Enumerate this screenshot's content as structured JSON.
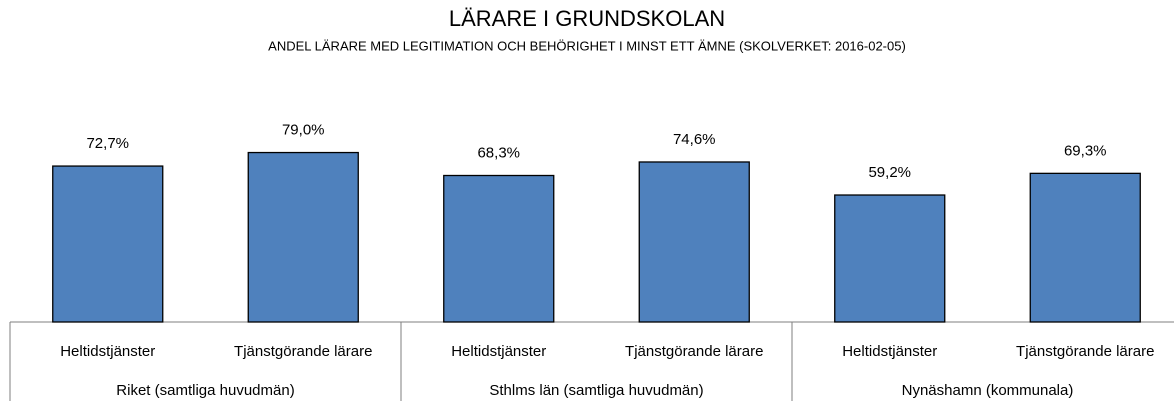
{
  "chart_data": {
    "type": "bar",
    "title": "LÄRARE I GRUNDSKOLAN",
    "subtitle": "ANDEL LÄRARE MED LEGITIMATION OCH BEHÖRIGHET I MINST ETT ÄMNE (SKOLVERKET: 2016-02-05)",
    "categories": [
      "Heltidstjänster",
      "Tjänstgörande lärare",
      "Heltidstjänster",
      "Tjänstgörande lärare",
      "Heltidstjänster",
      "Tjänstgörande lärare"
    ],
    "groups": [
      "Riket (samtliga huvudmän)",
      "Sthlms län (samtliga huvudmän)",
      "Nynäshamn (kommunala)"
    ],
    "values": [
      72.7,
      79.0,
      68.3,
      74.6,
      59.2,
      69.3
    ],
    "value_labels": [
      "72,7%",
      "79,0%",
      "68,3%",
      "74,6%",
      "59,2%",
      "69,3%"
    ],
    "color": "#4f81bd",
    "ylim": [
      0,
      100
    ]
  }
}
